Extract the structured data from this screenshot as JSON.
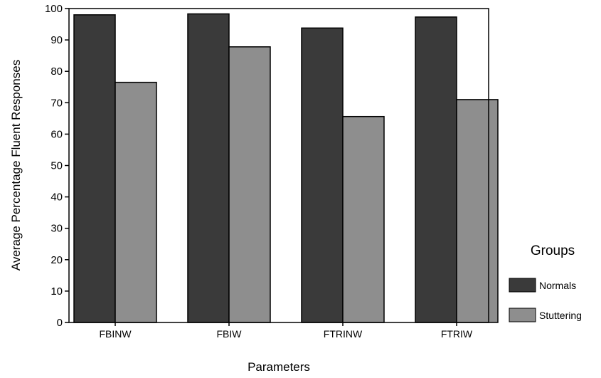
{
  "chart_data": {
    "type": "bar",
    "title": "",
    "xlabel": "Parameters",
    "ylabel": "Average Percentage Fluent Responses",
    "ylim": [
      0,
      100
    ],
    "yticks": [
      0,
      10,
      20,
      30,
      40,
      50,
      60,
      70,
      80,
      90,
      100
    ],
    "categories": [
      "FBINW",
      "FBIW",
      "FTRINW",
      "FTRIW"
    ],
    "series": [
      {
        "name": "Normals",
        "values": [
          98,
          98.3,
          93.8,
          97.3
        ],
        "color": "#3a3a3a"
      },
      {
        "name": "Stuttering",
        "values": [
          76.5,
          87.8,
          65.6,
          71
        ],
        "color": "#8e8e8e"
      }
    ],
    "legend": {
      "title": "Groups",
      "position": "right"
    },
    "grid": false
  }
}
